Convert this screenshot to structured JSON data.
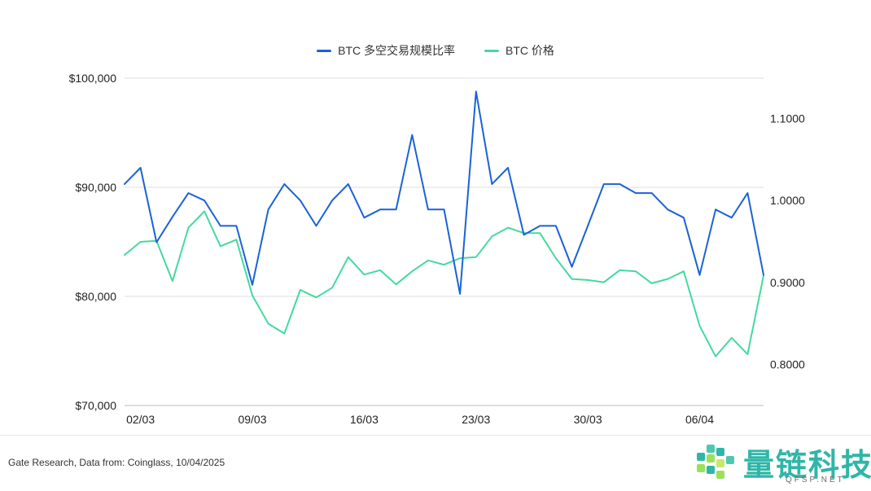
{
  "chart_data": {
    "type": "line",
    "x": [
      "01/03",
      "02/03",
      "03/03",
      "04/03",
      "05/03",
      "06/03",
      "07/03",
      "08/03",
      "09/03",
      "10/03",
      "11/03",
      "12/03",
      "13/03",
      "14/03",
      "15/03",
      "16/03",
      "17/03",
      "18/03",
      "19/03",
      "20/03",
      "21/03",
      "22/03",
      "23/03",
      "24/03",
      "25/03",
      "26/03",
      "27/03",
      "28/03",
      "29/03",
      "30/03",
      "31/03",
      "01/04",
      "02/04",
      "03/04",
      "04/04",
      "05/04",
      "06/04",
      "07/04",
      "08/04",
      "09/04",
      "10/04"
    ],
    "x_tick_labels": [
      "02/03",
      "09/03",
      "16/03",
      "23/03",
      "30/03",
      "06/04"
    ],
    "x_tick_indices": [
      1,
      8,
      15,
      22,
      29,
      36
    ],
    "series": [
      {
        "name": "BTC 多空交易规模比率",
        "axis": "right",
        "color": "#1a62d8",
        "values": [
          1.02,
          1.04,
          0.949,
          0.98,
          1.009,
          1.0,
          0.969,
          0.969,
          0.897,
          0.989,
          1.02,
          1.0,
          0.969,
          1.0,
          1.02,
          0.979,
          0.989,
          0.989,
          1.08,
          0.989,
          0.989,
          0.886,
          1.133,
          1.02,
          1.04,
          0.958,
          0.969,
          0.969,
          0.919,
          0.969,
          1.02,
          1.02,
          1.009,
          1.009,
          0.989,
          0.979,
          0.909,
          0.989,
          0.979,
          1.009,
          0.909
        ]
      },
      {
        "name": "BTC 价格",
        "axis": "left",
        "color": "#45d9a0",
        "values": [
          83800,
          85000,
          85100,
          81400,
          86300,
          87800,
          84600,
          85200,
          80100,
          77500,
          76600,
          80600,
          79900,
          80800,
          83600,
          82000,
          82400,
          81100,
          82300,
          83300,
          82900,
          83500,
          83600,
          85500,
          86300,
          85800,
          85800,
          83500,
          81600,
          81500,
          81300,
          82400,
          82300,
          81200,
          81600,
          82300,
          77300,
          74500,
          76200,
          74700,
          81900
        ]
      }
    ],
    "y_left": {
      "ticks": [
        "$70,000",
        "$80,000",
        "$90,000",
        "$100,000"
      ],
      "tick_values": [
        70000,
        80000,
        90000,
        100000
      ],
      "range": [
        70000,
        100000
      ]
    },
    "y_right": {
      "ticks": [
        "0.8000",
        "0.9000",
        "1.0000",
        "1.1000"
      ],
      "tick_values": [
        0.8,
        0.9,
        1.0,
        1.1
      ],
      "range": [
        0.7497,
        1.1493
      ]
    },
    "grid": true,
    "legend_position": "top-center"
  },
  "legend": {
    "items": [
      {
        "label": "BTC 多空交易规模比率",
        "color": "#1a62d8"
      },
      {
        "label": "BTC 价格",
        "color": "#45d9a0"
      }
    ]
  },
  "footer": {
    "source": "Gate Research, Data from: Coinglass, 10/04/2025",
    "logo_text": "量链科技",
    "logo_sub": "QFSP.NET"
  }
}
